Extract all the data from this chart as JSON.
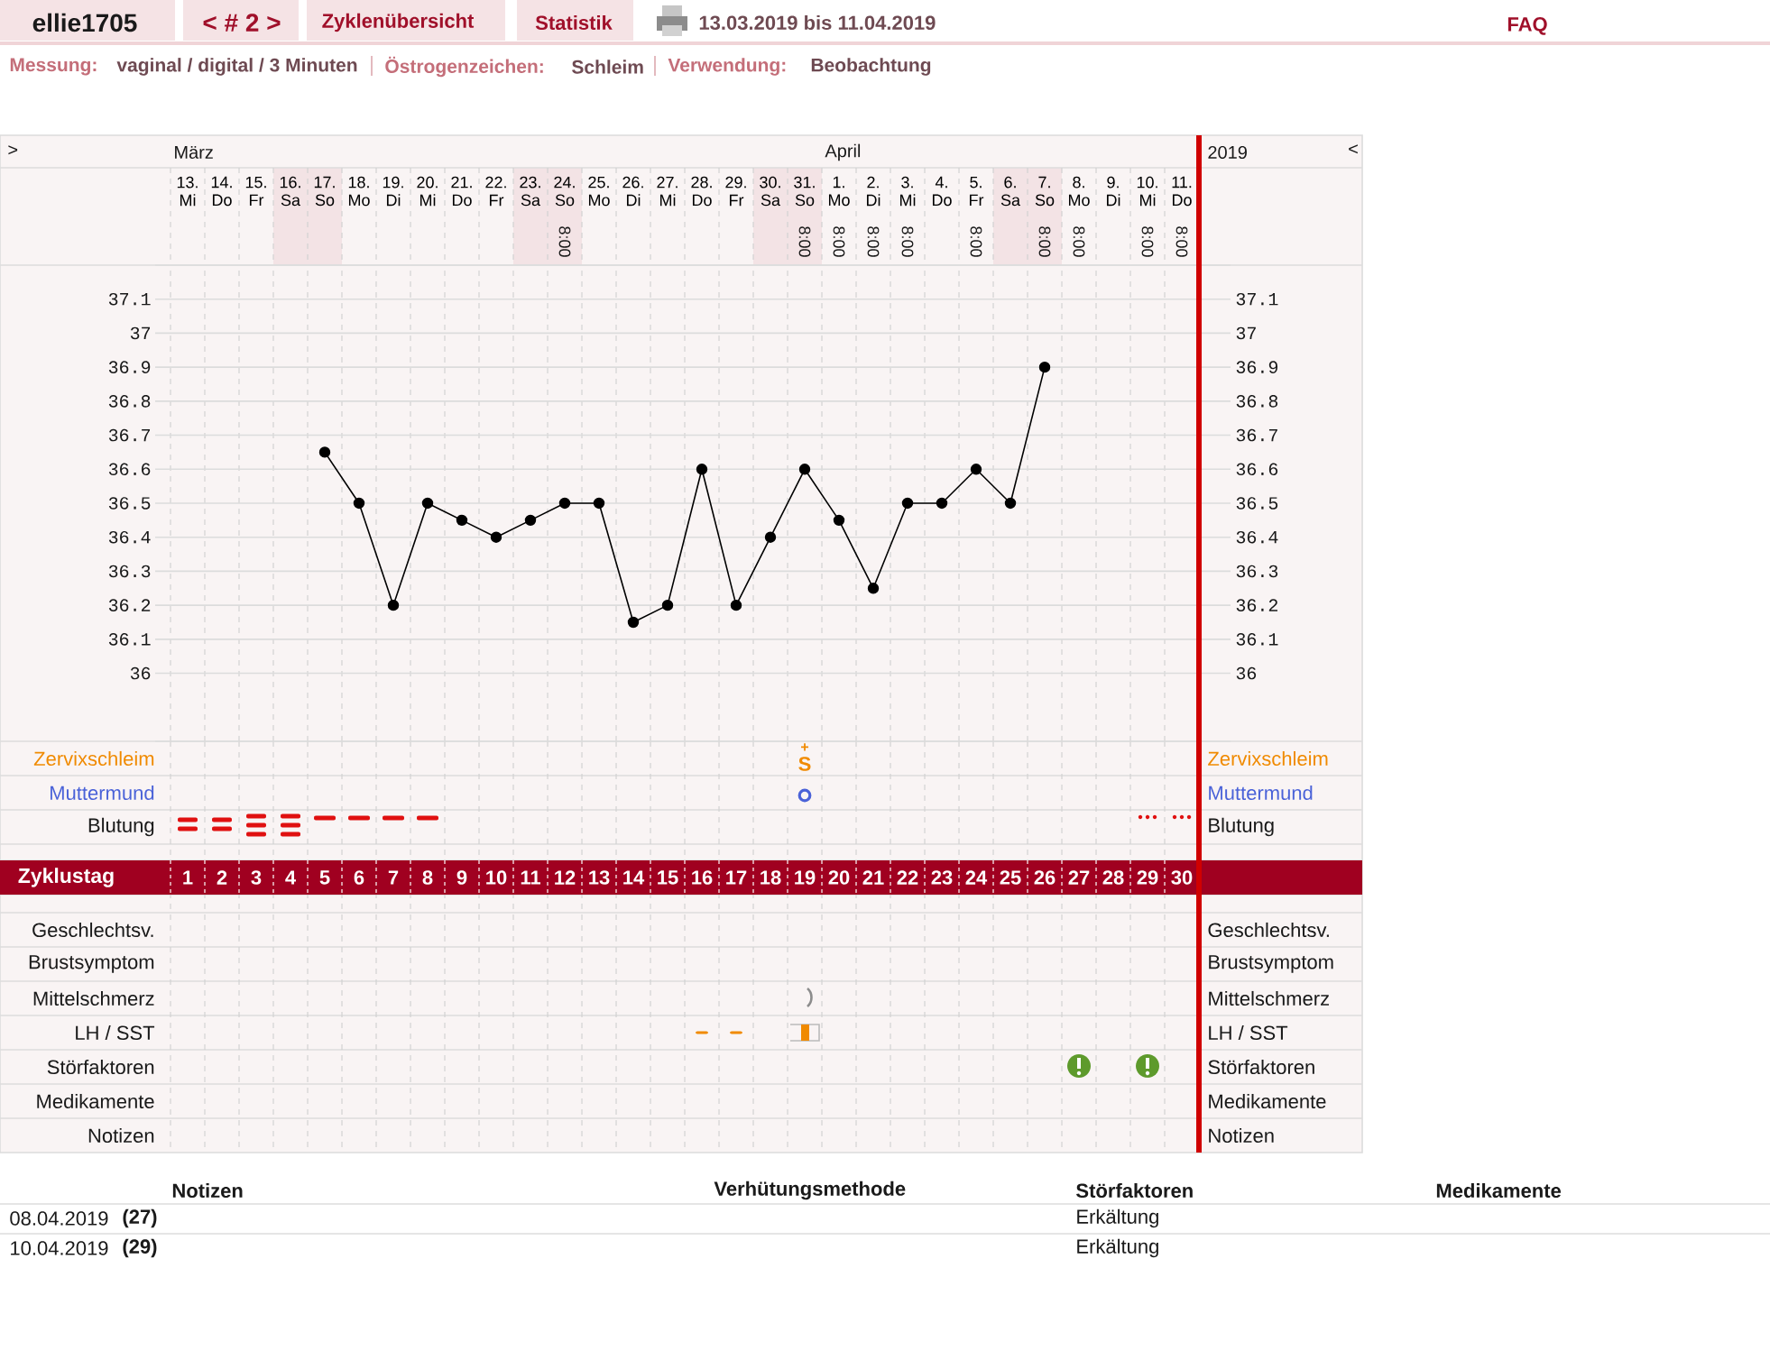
{
  "chart_data": {
    "type": "line",
    "categories": [
      "13. Mi",
      "14. Do",
      "15. Fr",
      "16. Sa",
      "17. So",
      "18. Mo",
      "19. Di",
      "20. Mi",
      "21. Do",
      "22. Fr",
      "23. Sa",
      "24. So",
      "25. Mo",
      "26. Di",
      "27. Mi",
      "28. Do",
      "29. Fr",
      "30. Sa",
      "31. So",
      "1. Mo",
      "2. Di",
      "3. Mi",
      "4. Do",
      "5. Fr",
      "6. Sa",
      "7. So",
      "8. Mo",
      "9. Di",
      "10. Mi",
      "11. Do"
    ],
    "values": [
      null,
      null,
      null,
      null,
      36.65,
      36.5,
      36.2,
      36.5,
      36.45,
      36.4,
      36.45,
      36.5,
      36.5,
      36.15,
      36.2,
      36.6,
      36.2,
      36.4,
      36.6,
      36.45,
      36.25,
      36.5,
      36.5,
      36.6,
      36.5,
      36.9,
      null,
      null,
      null,
      null
    ],
    "color": "#000000",
    "marker": "circle",
    "grid": true,
    "ylim": [
      35.8,
      37.2
    ],
    "yticks": [
      36,
      36.1,
      36.2,
      36.3,
      36.4,
      36.5,
      36.6,
      36.7,
      36.8,
      36.9,
      37,
      37.1
    ],
    "y2lim": [
      35.8,
      37.2
    ],
    "y2ticks": [
      36,
      36.1,
      36.2,
      36.3,
      36.4,
      36.5,
      36.6,
      36.7,
      36.8,
      36.9,
      37,
      37.1
    ],
    "x2label": "Zyklustag",
    "x2lim": [
      0.5,
      30.5
    ],
    "x2ticks": [
      1,
      2,
      3,
      4,
      5,
      6,
      7,
      8,
      9,
      10,
      11,
      12,
      13,
      14,
      15,
      16,
      17,
      18,
      19,
      20,
      21,
      22,
      23,
      24,
      25,
      26,
      27,
      28,
      29,
      30
    ],
    "annotations": [
      "ellie1705",
      "< # 2 >",
      "Zyklenübersicht",
      "Statistik",
      "13.03.2019 bis 11.04.2019",
      "FAQ",
      "Messung:",
      "vaginal / digital / 3 Minuten",
      "Östrogenzeichen:",
      "Schleim",
      "Verwendung:",
      "Beobachtung",
      ">",
      "März",
      "April",
      "2019",
      "<",
      "8:00",
      "8:00",
      "8:00",
      "8:00",
      "8:00",
      "8:00",
      "8:00",
      "8:00",
      "8:00",
      "8:00",
      "Zervixschleim",
      "Muttermund",
      "Blutung",
      "Geschlechtsv.",
      "Brustsymptom",
      "Mittelschmerz",
      "LH / SST",
      "Störfaktoren",
      "Medikamente",
      "Notizen",
      "Zervixschleim",
      "Muttermund",
      "Blutung",
      "Geschlechtsv.",
      "Brustsymptom",
      "Mittelschmerz",
      "LH / SST",
      "Störfaktoren",
      "Medikamente",
      "Notizen",
      "+",
      "S",
      "Notizen",
      "Verhütungsmethode",
      "Störfaktoren",
      "Medikamente",
      "08.04.2019",
      "(27)",
      "Erkältung",
      "10.04.2019",
      "(29)",
      "Erkältung"
    ]
  }
}
